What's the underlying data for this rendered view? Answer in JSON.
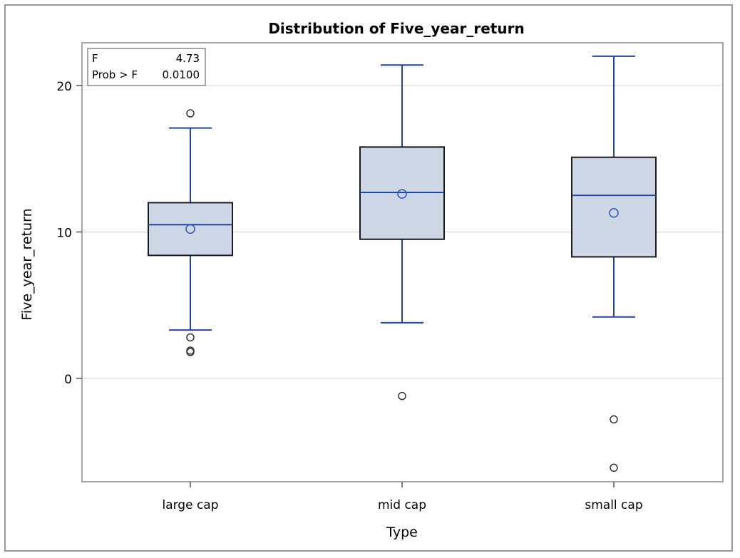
{
  "chart_data": {
    "type": "box",
    "title": "Distribution of Five_year_return",
    "xlabel": "Type",
    "ylabel": "Five_year_return",
    "categories": [
      "large cap",
      "mid cap",
      "small cap"
    ],
    "ylim": [
      -7,
      22.8
    ],
    "yticks": [
      0,
      10,
      20
    ],
    "grid": true,
    "boxes": [
      {
        "category": "large cap",
        "whisker_low": 3.3,
        "q1": 8.4,
        "median": 10.5,
        "q3": 12.0,
        "whisker_high": 17.1,
        "mean": 10.2,
        "outliers": [
          18.1,
          2.8,
          1.9,
          1.8
        ]
      },
      {
        "category": "mid cap",
        "whisker_low": 3.8,
        "q1": 9.5,
        "median": 12.7,
        "q3": 15.8,
        "whisker_high": 21.4,
        "mean": 12.6,
        "outliers": [
          -1.2
        ]
      },
      {
        "category": "small cap",
        "whisker_low": 4.2,
        "q1": 8.3,
        "median": 12.5,
        "q3": 15.1,
        "whisker_high": 22.0,
        "mean": 11.3,
        "outliers": [
          -2.8,
          -6.1
        ]
      }
    ],
    "stats_box": {
      "rows": [
        {
          "label": "F",
          "value": "4.73"
        },
        {
          "label": "Prob > F",
          "value": "0.0100"
        }
      ],
      "placement": "top-left"
    },
    "colors": {
      "box_fill": "#cdd7e6",
      "box_edge": "#1a1a1a",
      "whisker": "#2145a0",
      "median": "#2145a0",
      "mean": "#2b55b8",
      "outlier": "#333333",
      "grid": "#e0e0e0"
    }
  }
}
